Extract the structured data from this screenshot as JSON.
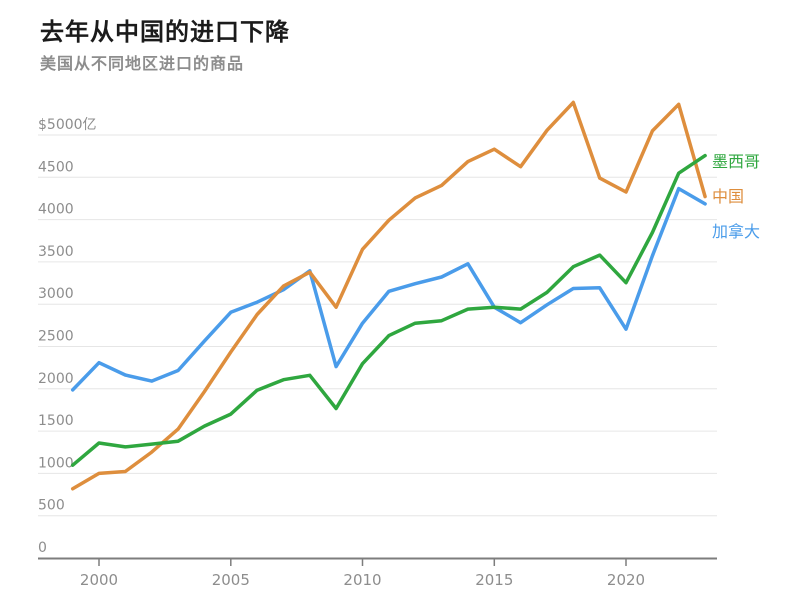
{
  "chart_data": {
    "type": "line",
    "title": "去年从中国的进口下降",
    "subtitle": "美国从不同地区进口的商品",
    "x": [
      1999,
      2000,
      2001,
      2002,
      2003,
      2004,
      2005,
      2006,
      2007,
      2008,
      2009,
      2010,
      2011,
      2012,
      2013,
      2014,
      2015,
      2016,
      2017,
      2018,
      2019,
      2020,
      2021,
      2022,
      2023
    ],
    "series": [
      {
        "name": "墨西哥",
        "color": "#2FA73F",
        "values": [
          1097,
          1359,
          1313,
          1346,
          1381,
          1559,
          1701,
          1983,
          2107,
          2159,
          1767,
          2297,
          2629,
          2776,
          2805,
          2942,
          2964,
          2942,
          3140,
          3443,
          3580,
          3254,
          3847,
          4548,
          4756
        ]
      },
      {
        "name": "中国",
        "color": "#DE8E3D",
        "values": [
          818,
          1000,
          1023,
          1252,
          1524,
          1967,
          2435,
          2878,
          3214,
          3378,
          2964,
          3649,
          3993,
          4256,
          4404,
          4685,
          4832,
          4625,
          5055,
          5385,
          4491,
          4326,
          5049,
          5363,
          4272
        ]
      },
      {
        "name": "加拿大",
        "color": "#4A9CEA",
        "values": [
          1987,
          2308,
          2163,
          2091,
          2216,
          2564,
          2904,
          3024,
          3171,
          3395,
          2262,
          2776,
          3153,
          3242,
          3321,
          3478,
          2964,
          2781,
          2993,
          3185,
          3194,
          2704,
          3572,
          4366,
          4186
        ]
      }
    ],
    "y_ticks": [
      {
        "value": 0,
        "label": "0"
      },
      {
        "value": 500,
        "label": "500"
      },
      {
        "value": 1000,
        "label": "1000"
      },
      {
        "value": 1500,
        "label": "1500"
      },
      {
        "value": 2000,
        "label": "2000"
      },
      {
        "value": 2500,
        "label": "2500"
      },
      {
        "value": 3000,
        "label": "3000"
      },
      {
        "value": 3500,
        "label": "3500"
      },
      {
        "value": 4000,
        "label": "4000"
      },
      {
        "value": 4500,
        "label": "4500"
      },
      {
        "value": 5000,
        "label": "$5000亿"
      }
    ],
    "x_ticks": [
      {
        "year": 2000,
        "label": "2000"
      },
      {
        "year": 2005,
        "label": "2005"
      },
      {
        "year": 2010,
        "label": "2010"
      },
      {
        "year": 2015,
        "label": "2015"
      },
      {
        "year": 2020,
        "label": "2020"
      }
    ],
    "xlim": [
      1999,
      2023
    ],
    "ylim": [
      0,
      5500
    ],
    "grid": true,
    "legend_position": "right",
    "colors": {
      "grid": "#e6e6e6",
      "axis": "#7d7d7d",
      "title": "#1b1b1b",
      "muted_text": "#8d8d8d"
    }
  }
}
